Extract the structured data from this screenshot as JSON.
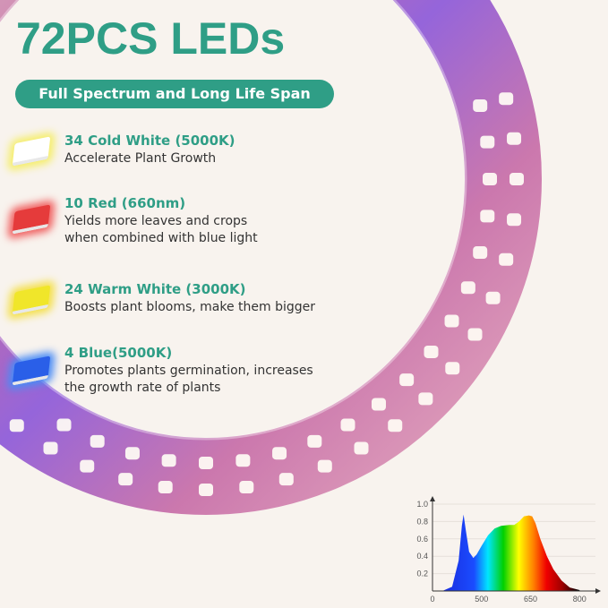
{
  "header": {
    "title": "72PCS LEDs",
    "subtitle": "Full Spectrum and Long Life Span"
  },
  "features": [
    {
      "heading": "34 Cold White  (5000K)",
      "description": [
        "Accelerate Plant Growth"
      ],
      "chip_color": "#ffffff",
      "glow_color": "#f5ee6a"
    },
    {
      "heading": "10 Red  (660nm)",
      "description": [
        "Yields more leaves and crops",
        "when combined with blue light"
      ],
      "chip_color": "#e53b3b",
      "glow_color": "#f06060"
    },
    {
      "heading": "24 Warm White  (3000K)",
      "description": [
        "Boosts plant blooms, make them bigger"
      ],
      "chip_color": "#f0e62a",
      "glow_color": "#f4e04a"
    },
    {
      "heading": "4 Blue(5000K)",
      "description": [
        "Promotes plants germination, increases",
        "the growth rate of plants"
      ],
      "chip_color": "#2a5fe8",
      "glow_color": "#4a8cf5"
    }
  ],
  "colors": {
    "accent": "#2f9e86",
    "background": "#f8f3ee"
  },
  "chart_data": {
    "type": "area",
    "title": "",
    "xlabel": "",
    "ylabel": "",
    "x_ticks": [
      "0",
      "500",
      "650",
      "800"
    ],
    "y_ticks": [
      "0.2",
      "0.4",
      "0.6",
      "0.8",
      "1.0"
    ],
    "ylim": [
      0,
      1.0
    ],
    "grid": true,
    "x": [
      380,
      410,
      430,
      440,
      445,
      452,
      462,
      475,
      485,
      500,
      520,
      540,
      560,
      585,
      600,
      615,
      630,
      645,
      655,
      665,
      680,
      700,
      720,
      745,
      770,
      800
    ],
    "y": [
      0,
      0.05,
      0.35,
      0.75,
      0.88,
      0.7,
      0.45,
      0.38,
      0.42,
      0.52,
      0.64,
      0.72,
      0.75,
      0.76,
      0.76,
      0.8,
      0.86,
      0.87,
      0.86,
      0.78,
      0.6,
      0.4,
      0.25,
      0.12,
      0.04,
      0.01
    ]
  }
}
